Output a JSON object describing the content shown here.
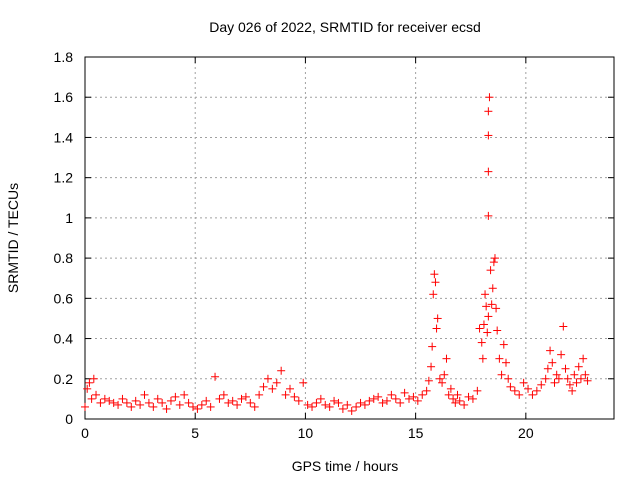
{
  "chart_data": {
    "type": "scatter",
    "title": "Day 026 of 2022, SRMTID for receiver ecsd",
    "xlabel": "GPS time / hours",
    "ylabel": "SRMTID / TECUs",
    "xlim": [
      0,
      24
    ],
    "ylim": [
      0,
      1.8
    ],
    "xticks": [
      0,
      5,
      10,
      15,
      20
    ],
    "xtick_labels": [
      "0",
      "5",
      "10",
      "15",
      "20"
    ],
    "yticks": [
      0,
      0.2,
      0.4,
      0.6,
      0.8,
      1,
      1.2,
      1.4,
      1.6,
      1.8
    ],
    "ytick_labels": [
      "0",
      "0.2",
      "0.4",
      "0.6",
      "0.8",
      "1",
      "1.2",
      "1.4",
      "1.6",
      "1.8"
    ],
    "grid": true,
    "marker": "+",
    "marker_color": "#ff0000",
    "series": [
      {
        "name": "SRMTID",
        "x": [
          0.0,
          0.1,
          0.2,
          0.3,
          0.4,
          0.5,
          0.7,
          0.9,
          1.1,
          1.3,
          1.5,
          1.7,
          1.9,
          2.1,
          2.3,
          2.5,
          2.7,
          2.9,
          3.1,
          3.3,
          3.5,
          3.7,
          3.9,
          4.1,
          4.3,
          4.5,
          4.7,
          4.9,
          5.1,
          5.3,
          5.5,
          5.7,
          5.9,
          6.1,
          6.3,
          6.5,
          6.7,
          6.9,
          7.1,
          7.3,
          7.5,
          7.7,
          7.9,
          8.1,
          8.3,
          8.5,
          8.7,
          8.9,
          9.1,
          9.3,
          9.5,
          9.7,
          9.9,
          10.1,
          10.3,
          10.5,
          10.7,
          10.9,
          11.1,
          11.3,
          11.5,
          11.7,
          11.9,
          12.1,
          12.3,
          12.5,
          12.7,
          12.9,
          13.1,
          13.3,
          13.5,
          13.7,
          13.9,
          14.1,
          14.3,
          14.5,
          14.7,
          14.9,
          15.1,
          15.3,
          15.5,
          15.6,
          15.7,
          15.75,
          15.8,
          15.85,
          15.9,
          15.95,
          16.0,
          16.1,
          16.2,
          16.3,
          16.4,
          16.5,
          16.6,
          16.7,
          16.8,
          16.9,
          17.0,
          17.2,
          17.4,
          17.6,
          17.8,
          17.9,
          18.0,
          18.05,
          18.1,
          18.15,
          18.2,
          18.25,
          18.3,
          18.3,
          18.3,
          18.3,
          18.3,
          18.35,
          18.4,
          18.45,
          18.5,
          18.55,
          18.6,
          18.65,
          18.7,
          18.8,
          18.9,
          19.0,
          19.1,
          19.2,
          19.3,
          19.5,
          19.7,
          19.9,
          20.1,
          20.3,
          20.5,
          20.7,
          20.9,
          21.0,
          21.1,
          21.2,
          21.3,
          21.4,
          21.5,
          21.6,
          21.7,
          21.8,
          21.9,
          22.0,
          22.1,
          22.2,
          22.3,
          22.4,
          22.5,
          22.6,
          22.7,
          22.8
        ],
        "y": [
          0.06,
          0.15,
          0.18,
          0.1,
          0.2,
          0.12,
          0.08,
          0.1,
          0.09,
          0.08,
          0.07,
          0.1,
          0.08,
          0.06,
          0.09,
          0.07,
          0.12,
          0.08,
          0.06,
          0.1,
          0.08,
          0.05,
          0.09,
          0.11,
          0.07,
          0.12,
          0.08,
          0.06,
          0.05,
          0.07,
          0.09,
          0.06,
          0.21,
          0.1,
          0.12,
          0.08,
          0.09,
          0.07,
          0.1,
          0.11,
          0.08,
          0.06,
          0.12,
          0.16,
          0.2,
          0.15,
          0.18,
          0.24,
          0.12,
          0.15,
          0.11,
          0.09,
          0.18,
          0.07,
          0.06,
          0.08,
          0.1,
          0.07,
          0.06,
          0.09,
          0.08,
          0.05,
          0.07,
          0.04,
          0.06,
          0.08,
          0.07,
          0.09,
          0.1,
          0.11,
          0.08,
          0.09,
          0.12,
          0.1,
          0.08,
          0.13,
          0.1,
          0.11,
          0.09,
          0.12,
          0.14,
          0.19,
          0.26,
          0.36,
          0.62,
          0.72,
          0.68,
          0.45,
          0.5,
          0.2,
          0.18,
          0.22,
          0.3,
          0.12,
          0.15,
          0.1,
          0.08,
          0.12,
          0.09,
          0.07,
          0.11,
          0.1,
          0.14,
          0.45,
          0.38,
          0.3,
          0.47,
          0.62,
          0.56,
          0.43,
          0.51,
          1.01,
          1.23,
          1.41,
          1.53,
          1.6,
          0.74,
          0.57,
          0.65,
          0.78,
          0.8,
          0.55,
          0.44,
          0.3,
          0.22,
          0.37,
          0.28,
          0.2,
          0.16,
          0.14,
          0.12,
          0.18,
          0.15,
          0.12,
          0.14,
          0.17,
          0.2,
          0.25,
          0.34,
          0.28,
          0.18,
          0.22,
          0.2,
          0.32,
          0.46,
          0.25,
          0.2,
          0.17,
          0.14,
          0.22,
          0.18,
          0.26,
          0.2,
          0.3,
          0.22,
          0.19
        ]
      }
    ]
  }
}
